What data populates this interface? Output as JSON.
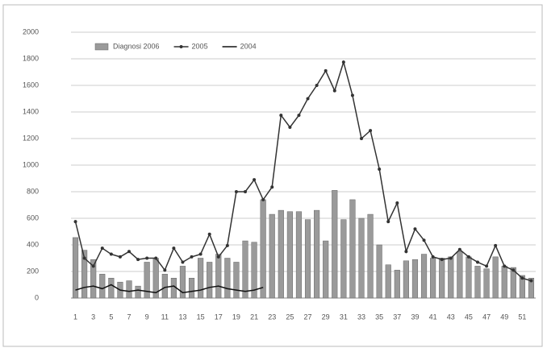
{
  "chart_data": {
    "type": "bar_line",
    "categories": [
      "1",
      null,
      "3",
      null,
      "5",
      null,
      "7",
      null,
      "9",
      null,
      "11",
      null,
      "13",
      null,
      "15",
      null,
      "17",
      null,
      "19",
      null,
      "21",
      null,
      "23",
      null,
      "25",
      null,
      "27",
      null,
      "29",
      null,
      "31",
      null,
      "33",
      null,
      "35",
      null,
      "37",
      null,
      "39",
      null,
      "41",
      null,
      "43",
      null,
      "45",
      null,
      "47",
      null,
      "49",
      null,
      "51",
      null
    ],
    "series": [
      {
        "name": "Diagnosi 2006",
        "kind": "bar",
        "color": "#9a9a9a",
        "values": [
          455,
          360,
          290,
          180,
          150,
          120,
          130,
          90,
          270,
          300,
          180,
          150,
          240,
          150,
          300,
          270,
          330,
          300,
          270,
          430,
          420,
          740,
          630,
          660,
          650,
          650,
          590,
          660,
          430,
          810,
          590,
          740,
          600,
          630,
          400,
          250,
          210,
          280,
          290,
          330,
          300,
          300,
          310,
          350,
          310,
          240,
          220,
          310,
          240,
          230,
          170,
          150
        ]
      },
      {
        "name": "2005",
        "kind": "line",
        "markers": true,
        "color": "#333333",
        "values": [
          575,
          300,
          240,
          375,
          330,
          310,
          350,
          290,
          300,
          300,
          210,
          375,
          270,
          310,
          330,
          480,
          310,
          395,
          800,
          800,
          890,
          740,
          835,
          1375,
          1285,
          1375,
          1500,
          1600,
          1710,
          1560,
          1775,
          1525,
          1200,
          1260,
          970,
          575,
          715,
          350,
          520,
          435,
          310,
          290,
          300,
          365,
          310,
          270,
          240,
          395,
          240,
          210,
          150,
          130
        ]
      },
      {
        "name": "2004",
        "kind": "line",
        "markers": false,
        "color": "#111111",
        "values": [
          60,
          80,
          90,
          70,
          100,
          60,
          50,
          60,
          50,
          40,
          80,
          90,
          40,
          50,
          60,
          80,
          90,
          70,
          60,
          50,
          60,
          80,
          null,
          null,
          null,
          null,
          null,
          null,
          null,
          null,
          null,
          null,
          null,
          null,
          null,
          null,
          null,
          null,
          null,
          null,
          null,
          null,
          null,
          null,
          null,
          null,
          null,
          null,
          null,
          null,
          null,
          null
        ]
      }
    ],
    "ylim": [
      0,
      2000
    ],
    "yticks": [
      0,
      200,
      400,
      600,
      800,
      1000,
      1200,
      1400,
      1600,
      1800,
      2000
    ],
    "grid": true
  }
}
